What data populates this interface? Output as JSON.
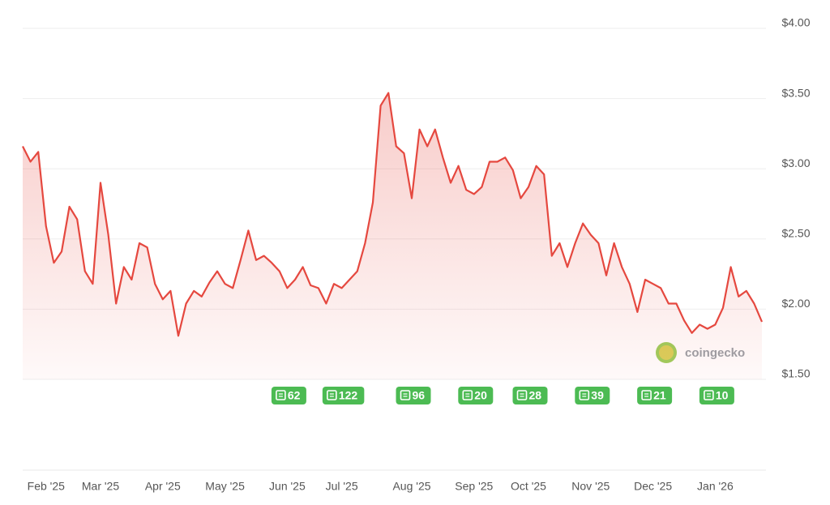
{
  "chart_data": {
    "type": "line",
    "categories": [
      null,
      null,
      null,
      "Feb '25",
      null,
      null,
      null,
      null,
      null,
      null,
      "Mar '25",
      null,
      null,
      null,
      null,
      null,
      null,
      null,
      "Apr '25",
      null,
      null,
      null,
      null,
      null,
      null,
      null,
      "May '25",
      null,
      null,
      null,
      null,
      null,
      null,
      null,
      "Jun '25",
      null,
      null,
      null,
      null,
      null,
      null,
      "Jul '25",
      null,
      null,
      null,
      null,
      null,
      null,
      null,
      null,
      "Aug '25",
      null,
      null,
      null,
      null,
      null,
      null,
      null,
      "Sep '25",
      null,
      null,
      null,
      null,
      null,
      null,
      "Oct '25",
      null,
      null,
      null,
      null,
      null,
      null,
      null,
      "Nov '25",
      null,
      null,
      null,
      null,
      null,
      null,
      null,
      "Dec '25",
      null,
      null,
      null,
      null,
      null,
      null,
      null,
      "Jan '26",
      null,
      null,
      null,
      null,
      null,
      null
    ],
    "values": [
      3.16,
      3.05,
      3.12,
      2.59,
      2.33,
      2.41,
      2.73,
      2.64,
      2.27,
      2.18,
      2.9,
      2.53,
      2.04,
      2.3,
      2.21,
      2.47,
      2.44,
      2.18,
      2.07,
      2.13,
      1.81,
      2.04,
      2.13,
      2.09,
      2.19,
      2.27,
      2.18,
      2.15,
      2.35,
      2.56,
      2.35,
      2.38,
      2.33,
      2.27,
      2.15,
      2.21,
      2.3,
      2.17,
      2.15,
      2.04,
      2.18,
      2.15,
      2.21,
      2.27,
      2.47,
      2.76,
      3.45,
      3.54,
      3.16,
      3.11,
      2.79,
      3.28,
      3.16,
      3.28,
      3.08,
      2.9,
      3.02,
      2.85,
      2.82,
      2.87,
      3.05,
      3.05,
      3.08,
      2.99,
      2.79,
      2.87,
      3.02,
      2.96,
      2.38,
      2.47,
      2.3,
      2.47,
      2.61,
      2.53,
      2.47,
      2.24,
      2.47,
      2.3,
      2.18,
      1.98,
      2.21,
      2.18,
      2.15,
      2.04,
      2.04,
      1.92,
      1.83,
      1.89,
      1.86,
      1.89,
      2.01,
      2.3,
      2.09,
      2.13,
      2.04,
      1.91
    ],
    "color": "#e5483f",
    "ylim": [
      1.5,
      4.0
    ],
    "yticks": [
      {
        "value": 1.5,
        "label": "$1.50"
      },
      {
        "value": 2.0,
        "label": "$2.00"
      },
      {
        "value": 2.5,
        "label": "$2.50"
      },
      {
        "value": 3.0,
        "label": "$3.00"
      },
      {
        "value": 3.5,
        "label": "$3.50"
      },
      {
        "value": 4.0,
        "label": "$4.00"
      }
    ],
    "grid": true,
    "news_counts": [
      62,
      122,
      96,
      20,
      28,
      39,
      21,
      10
    ],
    "watermark": "coingecko"
  }
}
